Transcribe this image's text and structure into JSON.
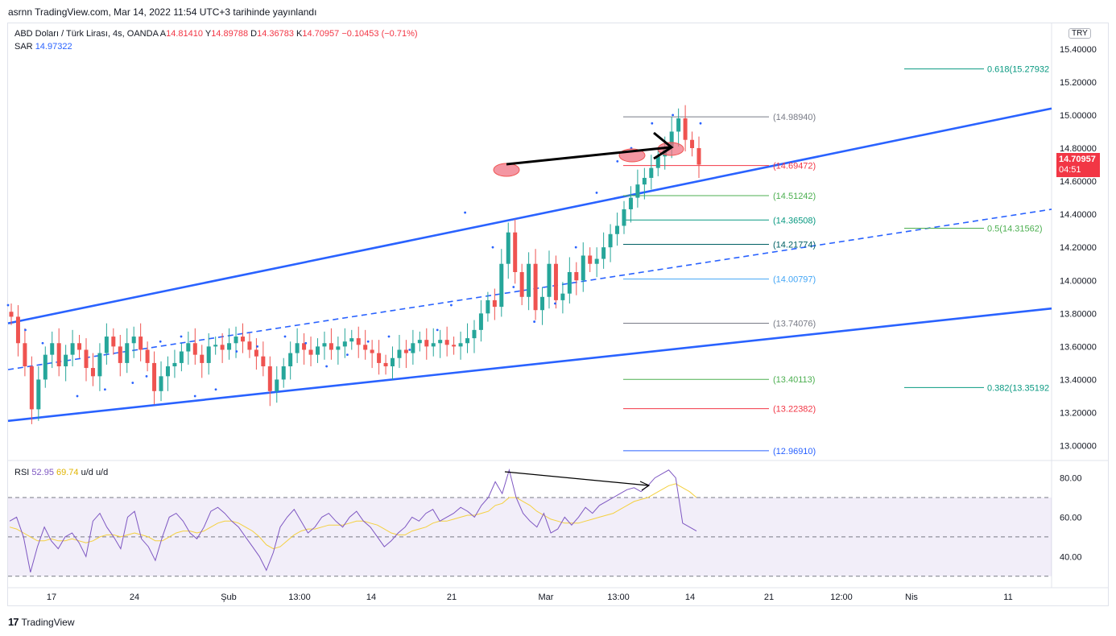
{
  "publish_info": "asrnn TradingView.com, Mar 14, 2022 11:54 UTC+3 tarihinde yayınlandı",
  "currency": "TRY",
  "legend": {
    "symbol": "ABD Doları / Türk Lirası, 4s, OANDA",
    "open_label": "A",
    "open": "14.81410",
    "high_label": "Y",
    "high": "14.89788",
    "low_label": "D",
    "low": "14.36783",
    "close_label": "K",
    "close": "14.70957",
    "change": "−0.10453 (−0.71%)",
    "sar_label": "SAR",
    "sar": "14.97322",
    "rsi_label": "RSI",
    "rsi": "52.95",
    "rsi_ma": "69.74",
    "rsi_extra": "u/d  u/d"
  },
  "last_price": {
    "value": "14.70957",
    "countdown": "04:51"
  },
  "footer": {
    "brand": "TradingView"
  },
  "colors": {
    "up": "#26a69a",
    "down": "#ef5350",
    "channel": "#2962ff",
    "sar": "#2962ff",
    "rsi": "#7e57c2",
    "rsi_ma": "#f4d03f",
    "rsi_band": "#7e57c2"
  },
  "chart_data": [
    {
      "type": "candlestick",
      "ylim": [
        12.92,
        15.55
      ],
      "y_ticks": [
        "15.40000",
        "15.20000",
        "15.00000",
        "14.80000",
        "14.60000",
        "14.40000",
        "14.20000",
        "14.00000",
        "13.80000",
        "13.60000",
        "13.40000",
        "13.20000",
        "13.00000"
      ],
      "y_tick_values": [
        15.4,
        15.2,
        15.0,
        14.8,
        14.6,
        14.4,
        14.2,
        14.0,
        13.8,
        13.6,
        13.4,
        13.2,
        13.0
      ],
      "x_tick_labels": [
        "17",
        "24",
        "Şub",
        "13:00",
        "14",
        "21",
        "Mar",
        "13:00",
        "14",
        "21",
        "12:00",
        "Nis",
        "11"
      ],
      "fib_levels": [
        {
          "label": "(14.98940)",
          "value": 14.9894,
          "color": "#787b86"
        },
        {
          "label": "(14.69472)",
          "value": 14.69472,
          "color": "#f23645"
        },
        {
          "label": "(14.51242)",
          "value": 14.51242,
          "color": "#4caf50"
        },
        {
          "label": "(14.36508)",
          "value": 14.36508,
          "color": "#089981"
        },
        {
          "label": "(14.21774)",
          "value": 14.21774,
          "color": "#006064"
        },
        {
          "label": "(14.00797)",
          "value": 14.00797,
          "color": "#42a5f5"
        },
        {
          "label": "(13.74076)",
          "value": 13.74076,
          "color": "#787b86"
        },
        {
          "label": "(13.40113)",
          "value": 13.40113,
          "color": "#4caf50"
        },
        {
          "label": "(13.22382)",
          "value": 13.22382,
          "color": "#f23645"
        },
        {
          "label": "(12.96910)",
          "value": 12.9691,
          "color": "#2962ff"
        }
      ],
      "ext_fib_levels": [
        {
          "label": "0.618(15.27932",
          "value": 15.27932,
          "color": "#089981"
        },
        {
          "label": "0.5(14.31562)",
          "value": 14.31562,
          "color": "#4caf50"
        },
        {
          "label": "0.382(13.35192",
          "value": 13.35192,
          "color": "#089981"
        }
      ],
      "channel": {
        "upper": [
          [
            0,
            13.74
          ],
          [
            1,
            15.04
          ]
        ],
        "middle": [
          [
            0,
            13.46
          ],
          [
            1,
            14.43
          ]
        ],
        "lower": [
          [
            0,
            13.15
          ],
          [
            1,
            13.83
          ]
        ]
      },
      "candles_close": [
        13.78,
        13.62,
        13.48,
        13.22,
        13.4,
        13.55,
        13.62,
        13.48,
        13.55,
        13.62,
        13.58,
        13.47,
        13.42,
        13.56,
        13.66,
        13.6,
        13.5,
        13.62,
        13.66,
        13.58,
        13.5,
        13.33,
        13.42,
        13.48,
        13.5,
        13.57,
        13.62,
        13.55,
        13.5,
        13.6,
        13.61,
        13.58,
        13.62,
        13.66,
        13.63,
        13.58,
        13.54,
        13.48,
        13.33,
        13.4,
        13.48,
        13.56,
        13.62,
        13.58,
        13.55,
        13.6,
        13.62,
        13.58,
        13.6,
        13.63,
        13.65,
        13.61,
        13.58,
        13.56,
        13.5,
        13.48,
        13.53,
        13.58,
        13.56,
        13.62,
        13.64,
        13.6,
        13.62,
        13.64,
        13.61,
        13.6,
        13.62,
        13.65,
        13.7,
        13.8,
        13.88,
        13.84,
        14.1,
        14.29,
        14.05,
        13.9,
        14.1,
        13.82,
        13.9,
        14.1,
        13.88,
        13.92,
        14.05,
        14.0,
        14.15,
        14.1,
        14.13,
        14.2,
        14.28,
        14.33,
        14.43,
        14.5,
        14.58,
        14.62,
        14.68,
        14.75,
        14.8,
        14.9,
        14.98,
        14.85,
        14.8,
        14.7
      ],
      "sar_points": [
        [
          0.0,
          13.85
        ],
        [
          0.025,
          13.7
        ],
        [
          0.05,
          13.62
        ],
        [
          0.1,
          13.3
        ],
        [
          0.14,
          13.34
        ],
        [
          0.18,
          13.38
        ],
        [
          0.2,
          13.42
        ],
        [
          0.22,
          13.63
        ],
        [
          0.25,
          13.66
        ],
        [
          0.27,
          13.3
        ],
        [
          0.3,
          13.34
        ],
        [
          0.33,
          13.57
        ],
        [
          0.36,
          13.6
        ],
        [
          0.4,
          13.66
        ],
        [
          0.43,
          13.62
        ],
        [
          0.46,
          13.48
        ],
        [
          0.49,
          13.55
        ],
        [
          0.52,
          13.63
        ],
        [
          0.55,
          13.66
        ],
        [
          0.58,
          13.58
        ],
        [
          0.62,
          13.7
        ],
        [
          0.64,
          13.85
        ],
        [
          0.66,
          14.41
        ],
        [
          0.7,
          14.2
        ],
        [
          0.73,
          13.96
        ],
        [
          0.76,
          13.75
        ],
        [
          0.79,
          13.86
        ],
        [
          0.82,
          14.2
        ],
        [
          0.85,
          14.53
        ],
        [
          0.88,
          14.72
        ],
        [
          0.9,
          14.8
        ],
        [
          0.93,
          14.95
        ],
        [
          0.96,
          15.0
        ],
        [
          1.0,
          14.95
        ]
      ]
    },
    {
      "type": "line",
      "ylim": [
        25,
        88
      ],
      "y_ticks": [
        "80.00",
        "60.00",
        "40.00"
      ],
      "y_tick_values": [
        80,
        60,
        40
      ],
      "bands": [
        70,
        50,
        30
      ],
      "series": [
        {
          "values": [
            58,
            60,
            50,
            32,
            45,
            55,
            48,
            44,
            50,
            52,
            47,
            40,
            58,
            62,
            55,
            50,
            44,
            60,
            63,
            49,
            45,
            38,
            50,
            60,
            62,
            58,
            52,
            49,
            55,
            63,
            65,
            62,
            58,
            55,
            50,
            45,
            40,
            33,
            42,
            55,
            60,
            64,
            58,
            52,
            55,
            60,
            62,
            58,
            55,
            60,
            63,
            58,
            55,
            50,
            45,
            48,
            52,
            55,
            60,
            58,
            62,
            64,
            58,
            60,
            62,
            65,
            63,
            60,
            66,
            70,
            78,
            72,
            84,
            70,
            62,
            58,
            55,
            62,
            52,
            54,
            60,
            56,
            60,
            65,
            62,
            66,
            68,
            70,
            72,
            74,
            75,
            73,
            76,
            80,
            82,
            84,
            80,
            57,
            55,
            53
          ]
        },
        {
          "values": [
            55,
            54,
            52,
            50,
            48,
            48,
            49,
            48,
            48,
            49,
            48,
            47,
            48,
            50,
            51,
            51,
            50,
            51,
            52,
            51,
            50,
            48,
            48,
            50,
            52,
            53,
            53,
            52,
            53,
            55,
            57,
            58,
            58,
            57,
            55,
            53,
            50,
            46,
            44,
            45,
            48,
            51,
            53,
            54,
            54,
            55,
            56,
            56,
            56,
            57,
            58,
            58,
            57,
            56,
            54,
            52,
            51,
            51,
            53,
            54,
            55,
            57,
            58,
            58,
            59,
            60,
            61,
            61,
            62,
            63,
            66,
            67,
            70,
            70,
            68,
            66,
            63,
            61,
            59,
            58,
            57,
            57,
            57,
            58,
            59,
            60,
            61,
            62,
            64,
            66,
            68,
            69,
            70,
            72,
            74,
            76,
            77,
            75,
            73,
            70
          ]
        }
      ]
    }
  ]
}
